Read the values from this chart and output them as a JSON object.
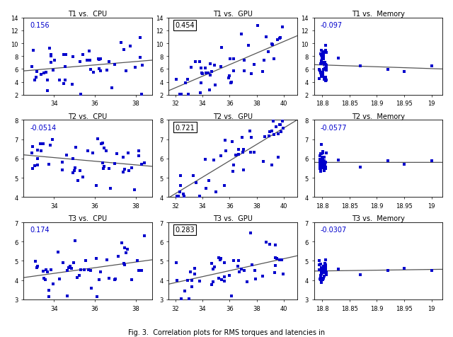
{
  "titles": [
    [
      "T1 vs.  CPU",
      "T1 vs.  GPU",
      "T1 vs.  Memory"
    ],
    [
      "T2 vs.  CPU",
      "T2 vs.  GPU",
      "T2 vs.  Memory"
    ],
    [
      "T3 vs.  CPU",
      "T3 vs.  GPU",
      "T3 vs.  Memory"
    ]
  ],
  "correlations": [
    [
      "0.156",
      "0.454",
      "-0.097"
    ],
    [
      "-0.0514",
      "0.721",
      "-0.0577"
    ],
    [
      "0.174",
      "0.283",
      "-0.0307"
    ]
  ],
  "boxed": [
    [
      false,
      true,
      false
    ],
    [
      false,
      true,
      false
    ],
    [
      false,
      true,
      false
    ]
  ],
  "xlims": [
    [
      [
        32.5,
        38.8
      ],
      [
        31.5,
        41.0
      ],
      [
        18.785,
        19.02
      ]
    ],
    [
      [
        32.5,
        38.8
      ],
      [
        31.5,
        41.0
      ],
      [
        18.785,
        19.02
      ]
    ],
    [
      [
        32.5,
        38.8
      ],
      [
        31.5,
        41.0
      ],
      [
        18.785,
        19.02
      ]
    ]
  ],
  "ylims": [
    [
      [
        2,
        14
      ],
      [
        2,
        14
      ],
      [
        2,
        14
      ]
    ],
    [
      [
        4,
        8
      ],
      [
        4,
        8
      ],
      [
        4,
        8
      ]
    ],
    [
      [
        3,
        7
      ],
      [
        3,
        7
      ],
      [
        3,
        7
      ]
    ]
  ],
  "yticks": [
    [
      [
        2,
        4,
        6,
        8,
        10,
        12,
        14
      ],
      [
        2,
        4,
        6,
        8,
        10,
        12,
        14
      ],
      [
        2,
        4,
        6,
        8,
        10,
        12,
        14
      ]
    ],
    [
      [
        4,
        5,
        6,
        7,
        8
      ],
      [
        4,
        5,
        6,
        7,
        8
      ],
      [
        4,
        5,
        6,
        7,
        8
      ]
    ],
    [
      [
        3,
        4,
        5,
        6,
        7
      ],
      [
        3,
        4,
        5,
        6,
        7
      ],
      [
        3,
        4,
        5,
        6,
        7
      ]
    ]
  ],
  "xticks": [
    [
      [
        34,
        36,
        38
      ],
      [
        32,
        34,
        36,
        38,
        40
      ],
      [
        18.8,
        18.85,
        18.9,
        18.95,
        19.0
      ]
    ],
    [
      [
        34,
        36,
        38
      ],
      [
        32,
        34,
        36,
        38,
        40
      ],
      [
        18.8,
        18.85,
        18.9,
        18.95,
        19.0
      ]
    ],
    [
      [
        34,
        36,
        38
      ],
      [
        32,
        34,
        36,
        38,
        40
      ],
      [
        18.8,
        18.85,
        18.9,
        18.95,
        19.0
      ]
    ]
  ],
  "dot_color": "#0000CC",
  "line_color": "#555555",
  "marker": "s",
  "markersize": 2.5
}
